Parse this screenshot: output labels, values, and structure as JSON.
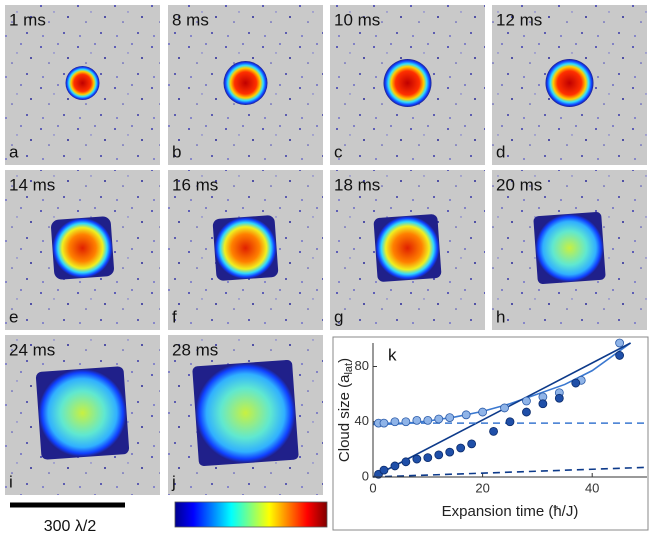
{
  "panels": [
    {
      "time": "1 ms",
      "letter": "a"
    },
    {
      "time": "8 ms",
      "letter": "b"
    },
    {
      "time": "10 ms",
      "letter": "c"
    },
    {
      "time": "12 ms",
      "letter": "d"
    },
    {
      "time": "14 ms",
      "letter": "e"
    },
    {
      "time": "16 ms",
      "letter": "f"
    },
    {
      "time": "18 ms",
      "letter": "g"
    },
    {
      "time": "20 ms",
      "letter": "h"
    },
    {
      "time": "24 ms",
      "letter": "i"
    },
    {
      "time": "28 ms",
      "letter": "j"
    }
  ],
  "scale_bar": "300 λ/2",
  "chart_data": {
    "type": "scatter",
    "panel_label": "k",
    "xlabel": "Expansion time (ħ/J)",
    "ylabel": {
      "text": "Cloud size (a",
      "sub": "lat",
      "end": ")"
    },
    "xlim": [
      0,
      50
    ],
    "ylim": [
      0,
      97
    ],
    "xticks": [
      0,
      20,
      40
    ],
    "yticks": [
      0,
      40,
      80
    ],
    "series": [
      {
        "color": "#8fb4e8",
        "stroke": "#2a5aa8",
        "x": [
          1,
          2,
          4,
          6,
          8,
          10,
          12,
          14,
          17,
          20,
          24,
          28,
          31,
          34,
          38,
          45
        ],
        "values": [
          39,
          39,
          40,
          40,
          41,
          41,
          42,
          43,
          45,
          47,
          50,
          55,
          58,
          61,
          70,
          97
        ]
      },
      {
        "color": "#1f4fa8",
        "stroke": "#0a2a6a",
        "x": [
          1,
          2,
          4,
          6,
          8,
          10,
          12,
          14,
          16,
          18,
          22,
          25,
          28,
          31,
          34,
          37,
          45
        ],
        "values": [
          2,
          5,
          8,
          11,
          13,
          14,
          16,
          18,
          21,
          24,
          33,
          40,
          47,
          53,
          57,
          68,
          88
        ]
      }
    ],
    "lines": [
      {
        "color": "#3a78d0",
        "dash": false,
        "x": [
          0,
          5,
          10,
          15,
          20,
          25,
          30,
          35,
          40,
          47
        ],
        "values": [
          38,
          38.5,
          40.5,
          43.5,
          47.5,
          53,
          60,
          67,
          77,
          97
        ]
      },
      {
        "color": "#0d3a8a",
        "dash": false,
        "x": [
          0,
          47
        ],
        "values": [
          0,
          97
        ]
      },
      {
        "color": "#3a78d0",
        "dash": true,
        "x": [
          0,
          50
        ],
        "values": [
          39,
          39
        ]
      },
      {
        "color": "#0d3a8a",
        "dash": true,
        "x": [
          0,
          50
        ],
        "values": [
          0,
          7
        ]
      }
    ]
  }
}
